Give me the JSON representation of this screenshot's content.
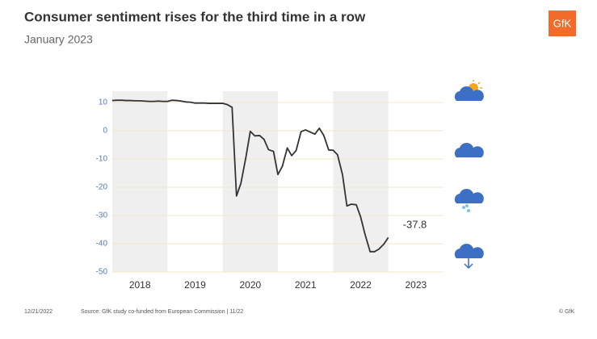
{
  "chart_data": {
    "type": "line",
    "title": "Consumer sentiment rises for the third time in a row",
    "subtitle": "January 2023",
    "logo": "GfK",
    "footer": {
      "date": "12/21/2022",
      "source": "Source: GfK study co-funded from European Commission | 11/22",
      "copyright": "© GfK"
    },
    "x": [
      2018.0,
      2018.08,
      2018.17,
      2018.25,
      2018.33,
      2018.42,
      2018.5,
      2018.58,
      2018.67,
      2018.75,
      2018.83,
      2018.92,
      2019.0,
      2019.08,
      2019.17,
      2019.25,
      2019.33,
      2019.42,
      2019.5,
      2019.58,
      2019.67,
      2019.75,
      2019.83,
      2019.92,
      2020.0,
      2020.08,
      2020.17,
      2020.25,
      2020.33,
      2020.42,
      2020.5,
      2020.58,
      2020.67,
      2020.75,
      2020.83,
      2020.92,
      2021.0,
      2021.08,
      2021.17,
      2021.25,
      2021.33,
      2021.42,
      2021.5,
      2021.58,
      2021.67,
      2021.75,
      2021.83,
      2021.92,
      2022.0,
      2022.08,
      2022.17,
      2022.25,
      2022.33,
      2022.42,
      2022.5,
      2022.58,
      2022.67,
      2022.75,
      2022.83,
      2022.92,
      2023.0
    ],
    "values": [
      10.7,
      10.8,
      10.8,
      10.7,
      10.7,
      10.6,
      10.6,
      10.5,
      10.4,
      10.4,
      10.5,
      10.4,
      10.4,
      10.8,
      10.7,
      10.5,
      10.2,
      10.1,
      9.8,
      9.8,
      9.8,
      9.7,
      9.7,
      9.7,
      9.7,
      9.3,
      8.3,
      -23.1,
      -18.6,
      -9.4,
      -0.2,
      -1.8,
      -1.7,
      -3.1,
      -6.7,
      -7.3,
      -15.5,
      -12.6,
      -6.1,
      -8.8,
      -7.0,
      -0.3,
      0.3,
      -0.4,
      -1.2,
      0.9,
      -1.6,
      -6.8,
      -6.9,
      -8.5,
      -15.5,
      -26.6,
      -26.0,
      -26.2,
      -30.6,
      -36.8,
      -42.8,
      -42.8,
      -41.9,
      -40.1,
      -37.8
    ],
    "color": "#333333",
    "xlim": [
      2018,
      2024
    ],
    "xticks": [
      2018,
      2019,
      2020,
      2021,
      2022,
      2023
    ],
    "ylim": [
      -50,
      14
    ],
    "yticks": [
      10,
      0,
      -10,
      -20,
      -30,
      -40,
      -50
    ],
    "grid": true
  }
}
